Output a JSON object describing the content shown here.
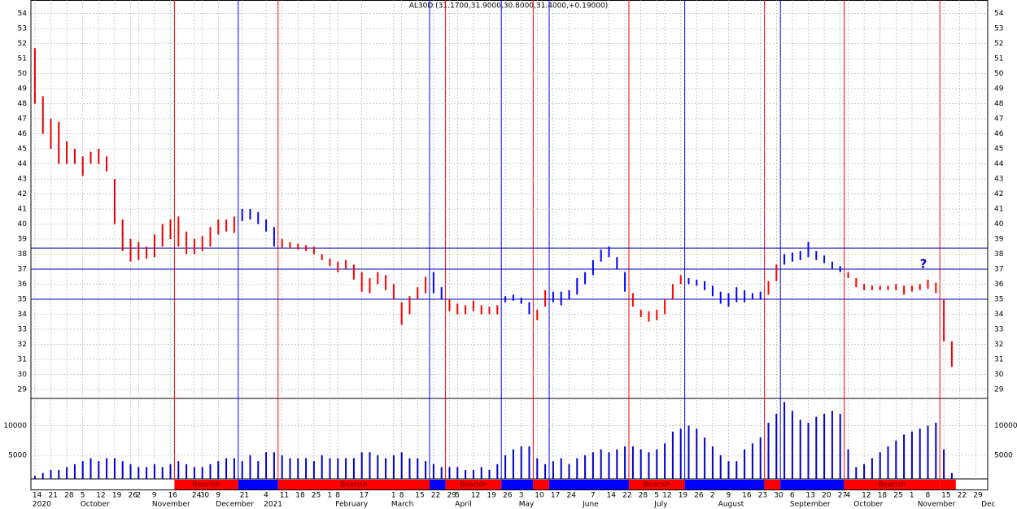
{
  "chart_data": {
    "type": "range",
    "title": "AL30D (31.1700,31.9000,30.8000,31.4000,+0.19000)",
    "categories": [
      "14",
      null,
      "21",
      null,
      "28",
      null,
      "5",
      null,
      "12",
      null,
      "19",
      null,
      "26",
      "2",
      null,
      "9",
      null,
      "16",
      null,
      null,
      "24",
      "30",
      null,
      "9",
      null,
      null,
      "21",
      null,
      null,
      "4",
      null,
      "11",
      null,
      "18",
      null,
      "25",
      null,
      "1",
      "8",
      null,
      null,
      "17",
      null,
      null,
      null,
      "1",
      "8",
      null,
      "15",
      null,
      "22",
      null,
      "29",
      "5",
      null,
      "12",
      null,
      "19",
      null,
      "26",
      null,
      "3",
      null,
      "10",
      null,
      "17",
      null,
      "24",
      null,
      null,
      "7",
      null,
      "14",
      null,
      "22",
      null,
      "28",
      null,
      "5",
      "12",
      null,
      "19",
      null,
      "26",
      null,
      "2",
      null,
      "9",
      null,
      "16",
      null,
      "23",
      null,
      "30",
      null,
      "6",
      null,
      "13",
      null,
      "20",
      null,
      "27",
      "4",
      null,
      "12",
      null,
      "18",
      null,
      "25",
      null,
      "1",
      null,
      "8",
      null,
      "15",
      null,
      "22",
      null,
      "29",
      null
    ],
    "months": [
      "2020",
      null,
      null,
      null,
      null,
      null,
      "October",
      null,
      null,
      null,
      null,
      null,
      null,
      null,
      null,
      "November",
      null,
      null,
      null,
      null,
      null,
      null,
      null,
      "December",
      null,
      null,
      null,
      null,
      null,
      "2021",
      null,
      null,
      null,
      null,
      null,
      null,
      null,
      null,
      "February",
      null,
      null,
      null,
      null,
      null,
      null,
      "March",
      null,
      null,
      null,
      null,
      null,
      null,
      null,
      "April",
      null,
      null,
      null,
      null,
      null,
      null,
      null,
      "May",
      null,
      null,
      null,
      null,
      null,
      null,
      null,
      "June",
      null,
      null,
      null,
      null,
      null,
      null,
      null,
      null,
      "July",
      null,
      null,
      null,
      null,
      null,
      null,
      null,
      "August",
      null,
      null,
      null,
      null,
      null,
      null,
      null,
      null,
      "September",
      null,
      null,
      null,
      null,
      null,
      null,
      null,
      "October",
      null,
      null,
      null,
      null,
      null,
      null,
      null,
      "November",
      null,
      null,
      null,
      null,
      null,
      null,
      null,
      "Dec"
    ],
    "highs": [
      51.7,
      48.5,
      47,
      46.8,
      45.5,
      45,
      44.5,
      44.8,
      45,
      44.5,
      43,
      40.3,
      39,
      38.8,
      38.5,
      39.3,
      40,
      40.3,
      40.5,
      39.5,
      39,
      39.2,
      39.8,
      40.3,
      40.3,
      40.5,
      41,
      41,
      40.8,
      40.3,
      39.8,
      39,
      38.8,
      38.7,
      38.6,
      38.5,
      38,
      37.7,
      37.5,
      37.6,
      37.3,
      36.8,
      36.4,
      36.8,
      36.6,
      36,
      34.8,
      35.2,
      35.8,
      36.5,
      36.8,
      35.8,
      35,
      34.7,
      34.6,
      34.9,
      34.6,
      34.5,
      34.6,
      35.2,
      35.3,
      35.1,
      34.8,
      34.3,
      35.6,
      35.5,
      35.5,
      35.6,
      36.4,
      36.8,
      37.6,
      38.3,
      38.5,
      37.8,
      36.8,
      35.4,
      34.3,
      34.2,
      34.3,
      35,
      36,
      36.6,
      36.4,
      36.3,
      36.2,
      35.9,
      35.5,
      35.4,
      35.8,
      35.6,
      35.4,
      35.5,
      36.2,
      37.3,
      38,
      38.1,
      38.2,
      38.8,
      38.2,
      37.9,
      37.5,
      37.2,
      36.8,
      36.4,
      36,
      35.9,
      35.9,
      35.9,
      36,
      35.9,
      35.9,
      36,
      36.3,
      36.1,
      35,
      32.2,
      null,
      null,
      null,
      null
    ],
    "lows": [
      48,
      46,
      45,
      44,
      44,
      44,
      43.2,
      44,
      44,
      43.5,
      40,
      38.2,
      37.5,
      37.6,
      37.7,
      37.8,
      38.5,
      39,
      38.5,
      38,
      38,
      38.2,
      38.5,
      39.3,
      39.5,
      39.4,
      40.2,
      40.3,
      40,
      39.5,
      38.5,
      38.4,
      38.4,
      38.3,
      38.2,
      38,
      37.6,
      37.2,
      36.8,
      37,
      36.3,
      35.5,
      35.4,
      36,
      35.6,
      35,
      33.3,
      34,
      35,
      35.4,
      35.4,
      35,
      34.2,
      34,
      34,
      34.2,
      34,
      34,
      34,
      34.8,
      34.9,
      34.7,
      34,
      33.6,
      34.5,
      34.8,
      34.6,
      35,
      35.3,
      36,
      36.6,
      37.5,
      37.8,
      37,
      35.5,
      34.5,
      33.8,
      33.5,
      33.6,
      34,
      35,
      36,
      36,
      35.9,
      35.6,
      35.2,
      34.7,
      34.5,
      34.8,
      34.8,
      35,
      35,
      35.3,
      36.2,
      37.3,
      37.5,
      37.6,
      37.8,
      37.6,
      37.4,
      37,
      36.8,
      36.4,
      35.8,
      35.6,
      35.6,
      35.6,
      35.6,
      35.6,
      35.3,
      35.5,
      35.6,
      35.7,
      35.4,
      32.2,
      30.5,
      null,
      null,
      null,
      null
    ],
    "ylim": [
      28.4,
      54.9
    ],
    "yticks": [
      29,
      30,
      31,
      32,
      33,
      34,
      35,
      36,
      37,
      38,
      39,
      40,
      41,
      42,
      43,
      44,
      45,
      46,
      47,
      48,
      49,
      50,
      51,
      52,
      53,
      54
    ],
    "grid": true,
    "default_color": "#dd0000",
    "hlines": [
      38.4,
      37,
      35
    ],
    "hline_color": "#0000aa",
    "annotation": "?",
    "bands": [
      {
        "from": 18,
        "to": 26,
        "color": "#ff0000",
        "label": "Bearish"
      },
      {
        "from": 26,
        "to": 31,
        "color": "#0000ff"
      },
      {
        "from": 31,
        "to": 50,
        "color": "#ff0000",
        "label": "Bearish"
      },
      {
        "from": 50,
        "to": 52,
        "color": "#0000ff"
      },
      {
        "from": 52,
        "to": 59,
        "color": "#ff0000",
        "label": "Bearish"
      },
      {
        "from": 59,
        "to": 63,
        "color": "#0000ff"
      },
      {
        "from": 63,
        "to": 65,
        "color": "#ff0000"
      },
      {
        "from": 65,
        "to": 75,
        "color": "#0000ff"
      },
      {
        "from": 75,
        "to": 82,
        "color": "#ff0000",
        "label": "Bearish"
      },
      {
        "from": 82,
        "to": 92,
        "color": "#0000ff"
      },
      {
        "from": 92,
        "to": 94,
        "color": "#ff0000"
      },
      {
        "from": 94,
        "to": 102,
        "color": "#0000ff"
      },
      {
        "from": 102,
        "to": 114,
        "color": "#ff0000",
        "label": "Bearish"
      },
      {
        "from": 114,
        "to": 116,
        "color": "#ff0000"
      }
    ],
    "volume": {
      "values": [
        1500,
        2000,
        2500,
        2500,
        3000,
        3500,
        4000,
        4500,
        4000,
        4500,
        4500,
        4000,
        3500,
        3000,
        3000,
        3500,
        3000,
        3500,
        4000,
        3500,
        3000,
        3000,
        3500,
        4000,
        4500,
        4500,
        4000,
        5000,
        4000,
        5500,
        5500,
        5000,
        4500,
        4500,
        4500,
        4000,
        5000,
        4500,
        4500,
        4500,
        4500,
        5500,
        5500,
        5000,
        4500,
        5000,
        5500,
        4500,
        4500,
        4000,
        3500,
        3000,
        3000,
        3000,
        2500,
        2500,
        3000,
        2500,
        3500,
        5000,
        6000,
        6500,
        6500,
        4500,
        3500,
        4000,
        4500,
        3500,
        4500,
        5000,
        5500,
        6000,
        5500,
        6000,
        6500,
        6500,
        6000,
        5500,
        6000,
        7000,
        9000,
        9500,
        10000,
        9500,
        8000,
        6500,
        5000,
        4000,
        4000,
        6000,
        7000,
        8000,
        10500,
        12000,
        14000,
        12500,
        11000,
        10500,
        11500,
        12000,
        12500,
        12000,
        6000,
        3000,
        3500,
        4500,
        5500,
        6500,
        7500,
        8500,
        9000,
        9500,
        10000,
        10500,
        6000,
        2000,
        null,
        null,
        null,
        null
      ],
      "color": "#0000cc",
      "ylim": [
        1000,
        14600
      ],
      "yticks": [
        5000,
        10000
      ]
    }
  }
}
